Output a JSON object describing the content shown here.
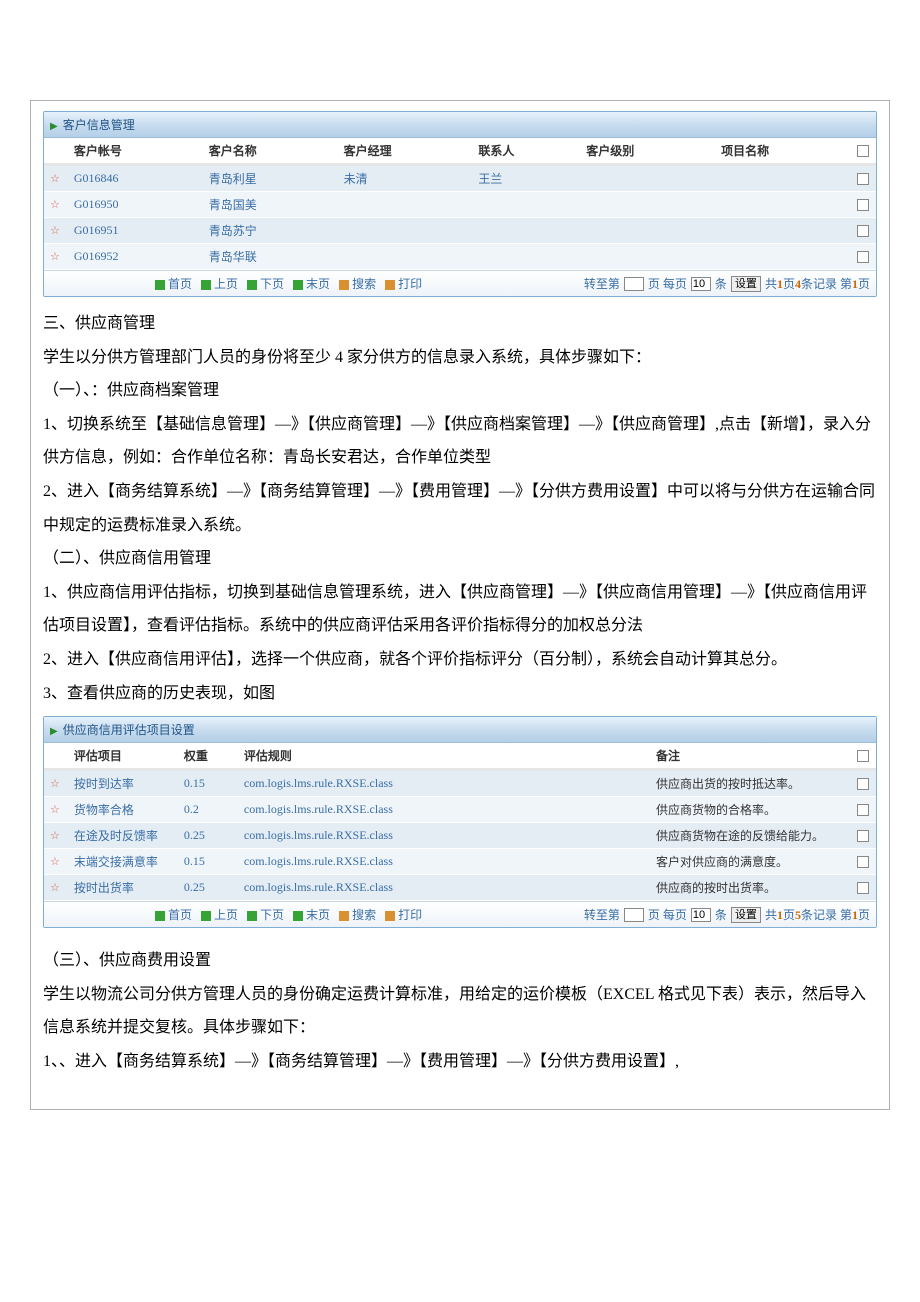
{
  "panel1": {
    "title": "客户信息管理",
    "columns": [
      "客户帐号",
      "客户名称",
      "客户经理",
      "联系人",
      "客户级别",
      "项目名称"
    ],
    "rows": [
      {
        "acct": "G016846",
        "name": "青岛利星",
        "mgr": "未清",
        "contact": "王兰",
        "level": "",
        "proj": ""
      },
      {
        "acct": "G016950",
        "name": "青岛国美",
        "mgr": "",
        "contact": "",
        "level": "",
        "proj": ""
      },
      {
        "acct": "G016951",
        "name": "青岛苏宁",
        "mgr": "",
        "contact": "",
        "level": "",
        "proj": ""
      },
      {
        "acct": "G016952",
        "name": "青岛华联",
        "mgr": "",
        "contact": "",
        "level": "",
        "proj": ""
      }
    ]
  },
  "body_a": [
    "三、供应商管理",
    "学生以分供方管理部门人员的身份将至少 4 家分供方的信息录入系统，具体步骤如下：",
    "（一）、：供应商档案管理",
    "1、切换系统至【基础信息管理】—》【供应商管理】—》【供应商档案管理】—》【供应商管理】,点击【新增】，录入分供方信息，例如：合作单位名称：青岛长安君达，合作单位类型",
    "2、进入【商务结算系统】—》【商务结算管理】—》【费用管理】—》【分供方费用设置】中可以将与分供方在运输合同中规定的运费标准录入系统。",
    "（二）、供应商信用管理",
    "1、供应商信用评估指标，切换到基础信息管理系统，进入【供应商管理】—》【供应商信用管理】—》【供应商信用评估项目设置】，查看评估指标。系统中的供应商评估采用各评价指标得分的加权总分法",
    "2、进入【供应商信用评估】，选择一个供应商，就各个评价指标评分（百分制），系统会自动计算其总分。",
    "3、查看供应商的历史表现，如图"
  ],
  "panel2": {
    "title": "供应商信用评估项目设置",
    "columns": [
      "评估项目",
      "权重",
      "评估规则",
      "备注"
    ],
    "rows": [
      {
        "item": "按时到达率",
        "w": "0.15",
        "rule": "com.logis.lms.rule.RXSE.class",
        "note": "供应商出货的按时抵达率。"
      },
      {
        "item": "货物率合格",
        "w": "0.2",
        "rule": "com.logis.lms.rule.RXSE.class",
        "note": "供应商货物的合格率。"
      },
      {
        "item": "在途及时反馈率",
        "w": "0.25",
        "rule": "com.logis.lms.rule.RXSE.class",
        "note": "供应商货物在途的反馈给能力。"
      },
      {
        "item": "末端交接满意率",
        "w": "0.15",
        "rule": "com.logis.lms.rule.RXSE.class",
        "note": "客户对供应商的满意度。"
      },
      {
        "item": "按时出货率",
        "w": "0.25",
        "rule": "com.logis.lms.rule.RXSE.class",
        "note": "供应商的按时出货率。"
      }
    ]
  },
  "pager": {
    "nav": [
      "首页",
      "上页",
      "下页",
      "末页",
      "搜索",
      "打印"
    ],
    "goto_label": "转至第",
    "page_label": "页 每页",
    "perpage_value": "10",
    "items_label": "条",
    "set_label": "设置"
  },
  "pager1_summary_parts": [
    "共",
    "1",
    "页",
    "4",
    "条记录  第",
    "1",
    "页"
  ],
  "pager2_summary_parts": [
    "共",
    "1",
    "页",
    "5",
    "条记录  第",
    "1",
    "页"
  ],
  "body_b": [
    "（三）、供应商费用设置",
    "学生以物流公司分供方管理人员的身份确定运费计算标准，用给定的运价模板（EXCEL 格式见下表）表示，然后导入信息系统并提交复核。具体步骤如下：",
    "1、、进入【商务结算系统】—》【商务结算管理】—》【费用管理】—》【分供方费用设置】,"
  ]
}
